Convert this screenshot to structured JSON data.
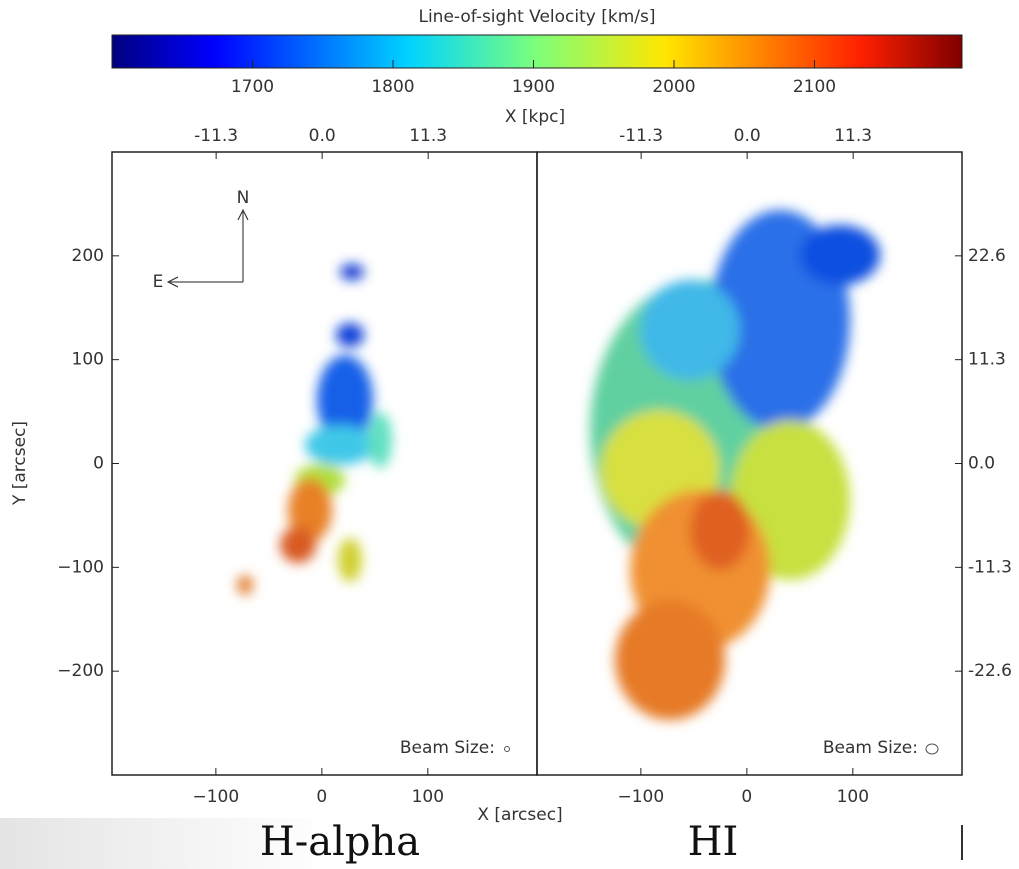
{
  "chart_data": [
    {
      "type": "colorbar",
      "title": "Line-of-sight Velocity [km/s]",
      "xlim": [
        1600,
        2205
      ],
      "xticks": [
        1700,
        1800,
        1900,
        2000,
        2100
      ]
    },
    {
      "type": "map",
      "title": "H-alpha",
      "xlabel": "X [arcsec]",
      "ylabel": "Y [arcsec]",
      "x2label": "X [kpc]",
      "xlim": [
        -198,
        203
      ],
      "ylim": [
        -300,
        300
      ],
      "xticks": [
        {
          "value": -100,
          "label": "−100"
        },
        0,
        100
      ],
      "yticks": [
        {
          "value": -200,
          "label": "−200"
        },
        {
          "value": -100,
          "label": "−100"
        },
        0,
        100,
        200
      ],
      "x2lim": [
        -22.4,
        22.9
      ],
      "x2ticks": [
        -11.3,
        {
          "value": 0,
          "label": "0.0"
        },
        11.3
      ],
      "annotation": "Beam Size:",
      "compass": [
        "N",
        "E"
      ]
    },
    {
      "type": "map",
      "title": "HI",
      "xlim": [
        -198,
        203
      ],
      "ylim": [
        -300,
        300
      ],
      "xticks": [
        {
          "value": -100,
          "label": "−100"
        },
        0,
        100
      ],
      "x2lim": [
        -22.4,
        22.9
      ],
      "x2ticks": [
        -11.3,
        {
          "value": 0,
          "label": "0.0"
        },
        11.3
      ],
      "y2lim": [
        -33.9,
        33.9
      ],
      "y2ticks": [
        -22.6,
        -11.3,
        {
          "value": 0,
          "label": "0.0"
        },
        11.3,
        22.6
      ],
      "annotation": "Beam Size:"
    }
  ]
}
